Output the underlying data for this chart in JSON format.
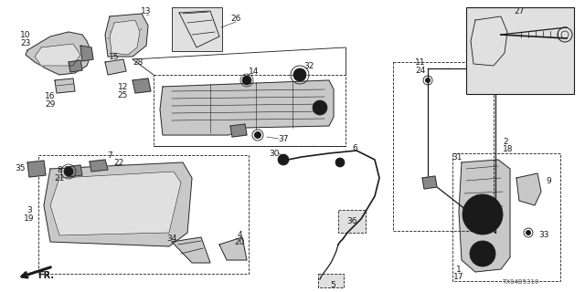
{
  "bg_color": "#ffffff",
  "line_color": "#1a1a1a",
  "diagram_code": "TX84B5310",
  "fig_width": 6.4,
  "fig_height": 3.2,
  "dpi": 100
}
